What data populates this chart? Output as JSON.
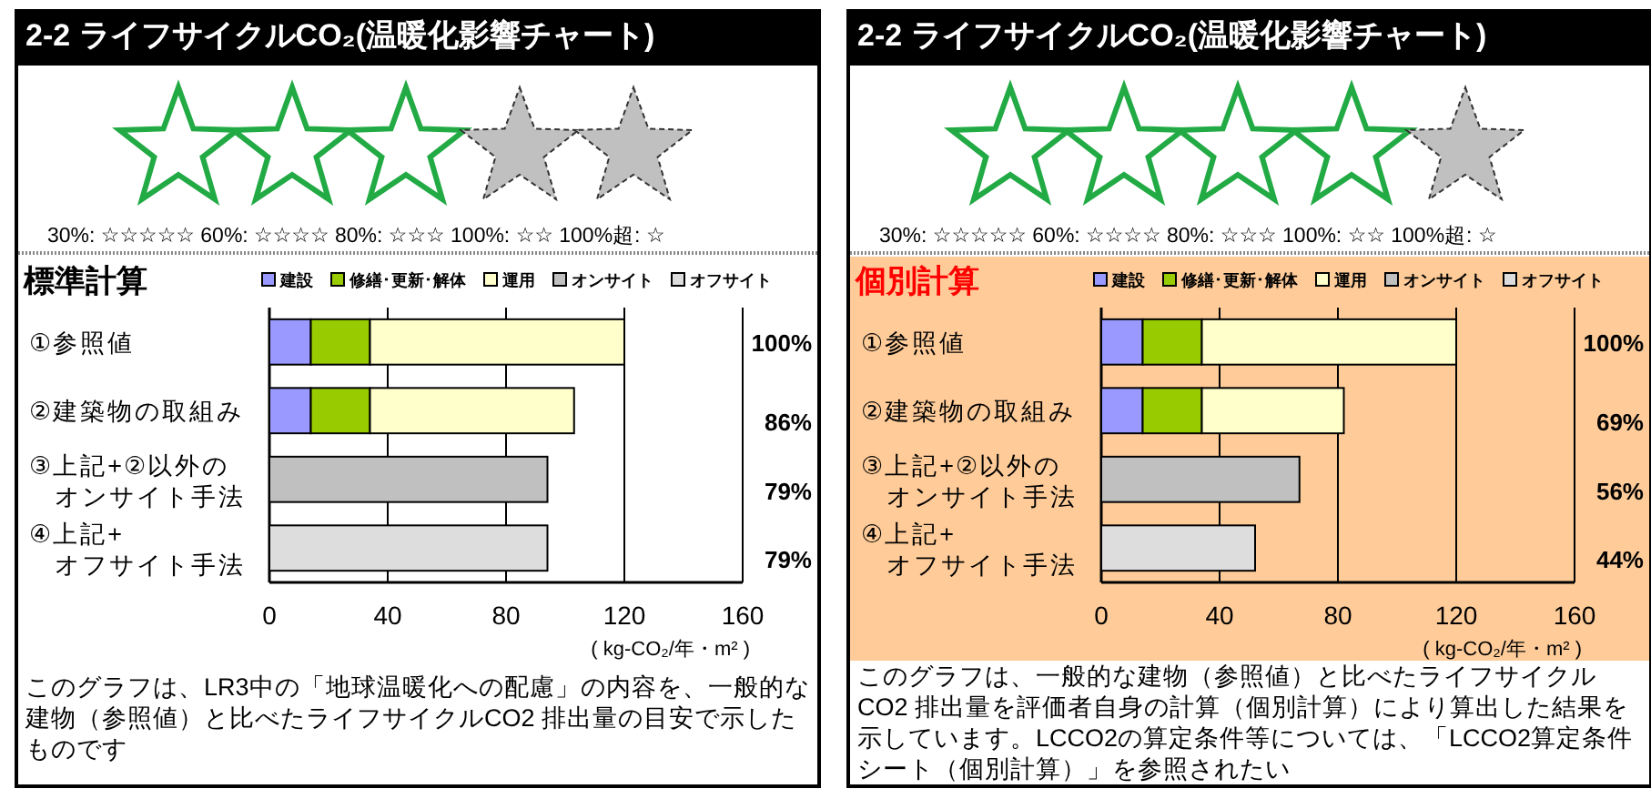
{
  "chart_data": [
    {
      "type": "bar",
      "orientation": "horizontal",
      "stacked": true,
      "title": "2-2 ライフサイクルCO₂(温暖化影響チャート)",
      "subtitle": "標準計算",
      "categories": [
        "①参照値",
        "②建築物の取組み",
        "③上記+②以外のオンサイト手法",
        "④上記+オフサイト手法"
      ],
      "series": [
        {
          "name": "建設",
          "color": "#9999ff",
          "values": [
            14,
            14,
            null,
            null
          ]
        },
        {
          "name": "修繕･更新･解体",
          "color": "#99cc00",
          "values": [
            20,
            20,
            null,
            null
          ]
        },
        {
          "name": "運用",
          "color": "#ffffcc",
          "values": [
            86,
            69,
            null,
            null
          ]
        },
        {
          "name": "オンサイト",
          "color": "#c0c0c0",
          "values": [
            null,
            null,
            94,
            null
          ]
        },
        {
          "name": "オフサイト",
          "color": "#dddddd",
          "values": [
            null,
            null,
            null,
            94
          ]
        }
      ],
      "xlim": [
        0,
        160
      ],
      "xticks": [
        0,
        40,
        80,
        120,
        160
      ],
      "xlabel": "( kg-CO₂/年・m² )",
      "grid": "x",
      "legend": "top",
      "annotations": [
        "30%: ☆☆☆☆☆  60%: ☆☆☆☆  80%: ☆☆☆ 100%: ☆☆  100%超: ☆",
        "このグラフは、LR3中の「地球温暖化への配慮」の内容を、一般的な建物（参照値）と比べたライフサイクルCO2 排出量の目安で示したものです",
        "100%",
        "86%",
        "79%",
        "79%"
      ]
    },
    {
      "type": "bar",
      "orientation": "horizontal",
      "stacked": true,
      "title": "2-2 ライフサイクルCO₂(温暖化影響チャート)",
      "subtitle": "個別計算",
      "categories": [
        "①参照値",
        "②建築物の取組み",
        "③上記+②以外のオンサイト手法",
        "④上記+オフサイト手法"
      ],
      "series": [
        {
          "name": "建設",
          "color": "#9999ff",
          "values": [
            14,
            14,
            null,
            null
          ]
        },
        {
          "name": "修繕･更新･解体",
          "color": "#99cc00",
          "values": [
            20,
            20,
            null,
            null
          ]
        },
        {
          "name": "運用",
          "color": "#ffffcc",
          "values": [
            86,
            48,
            null,
            null
          ]
        },
        {
          "name": "オンサイト",
          "color": "#c0c0c0",
          "values": [
            null,
            null,
            67,
            null
          ]
        },
        {
          "name": "オフサイト",
          "color": "#dddddd",
          "values": [
            null,
            null,
            null,
            52
          ]
        }
      ],
      "xlim": [
        0,
        160
      ],
      "xticks": [
        0,
        40,
        80,
        120,
        160
      ],
      "xlabel": "( kg-CO₂/年・m² )",
      "grid": "x",
      "legend": "top",
      "annotations": [
        "30%: ☆☆☆☆☆  60%: ☆☆☆☆  80%: ☆☆☆ 100%: ☆☆  100%超: ☆",
        "このグラフは、一般的な建物（参照値）と比べたライフサイクルCO2 排出量を評価者自身の計算（個別計算）により算出した結果を示しています。LCCO2の算定条件等については、「LCCO2算定条件シート（個別計算）」を参照されたい",
        "100%",
        "69%",
        "56%",
        "44%"
      ]
    }
  ]
}
